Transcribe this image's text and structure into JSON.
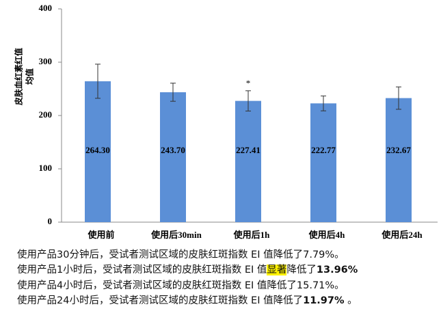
{
  "chart_data": {
    "type": "bar",
    "ylabel": [
      "皮肤血红素红值",
      "均值"
    ],
    "categories": [
      "使用前",
      "使用后30min",
      "使用后1h",
      "使用后4h",
      "使用后24h"
    ],
    "values": [
      264.3,
      243.7,
      227.41,
      222.77,
      232.67
    ],
    "value_labels": [
      "264.30",
      "243.70",
      "227.41",
      "222.77",
      "232.67"
    ],
    "errors": [
      32,
      17,
      19,
      14,
      21
    ],
    "color": "#5b8fd6",
    "ylim": [
      0,
      400
    ],
    "yticks": [
      0,
      100,
      200,
      300,
      400
    ],
    "annotations": [
      {
        "text": "*",
        "category": 2
      }
    ]
  },
  "notes": [
    [
      {
        "text": "使用产品30分钟后，受试者测试区域的皮肤红斑指数 EI 值降低了7.79%。"
      }
    ],
    [
      {
        "text": "使用产品1小时后，受试者测试区域的皮肤红斑指数 EI 值"
      },
      {
        "text": "显著",
        "style": "highlight"
      },
      {
        "text": "降低了"
      },
      {
        "text": "13.96%",
        "style": "bold"
      }
    ],
    [
      {
        "text": "使用产品4小时后，受试者测试区域的皮肤红斑指数 EI 值降低了15.71%。"
      }
    ],
    [
      {
        "text": "使用产品24小时后，受试者测试区域的皮肤红斑指数 EI 值降低了"
      },
      {
        "text": "11.97%",
        "style": "bold"
      },
      {
        "text": " 。"
      }
    ]
  ]
}
